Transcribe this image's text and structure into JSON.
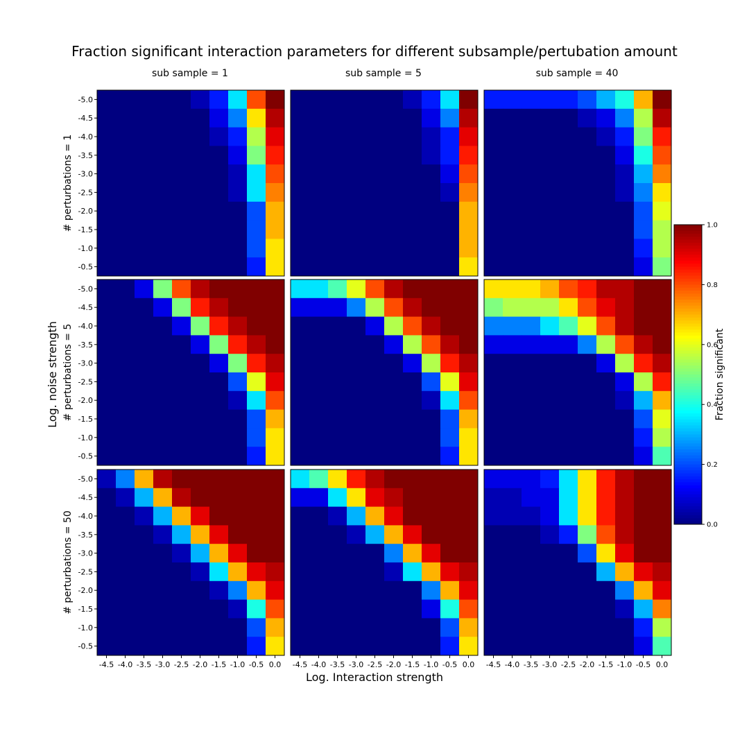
{
  "chart_data": {
    "type": "heatmap",
    "title": "Fraction significant interaction parameters for different subsample/pertubation amount",
    "xlabel": "Log. Interaction strength",
    "ylabel": "Log. noise strength",
    "x_ticks": [
      "-4.5",
      "-4.0",
      "-3.5",
      "-3.0",
      "-2.5",
      "-2.0",
      "-1.5",
      "-1.0",
      "-0.5",
      "0.0"
    ],
    "y_ticks": [
      "-5.0",
      "-4.5",
      "-4.0",
      "-3.5",
      "-3.0",
      "-2.5",
      "-2.0",
      "-1.5",
      "-1.0",
      "-0.5"
    ],
    "column_titles": [
      "sub sample = 1",
      "sub sample = 5",
      "sub sample = 40"
    ],
    "row_labels": [
      "# perturbations = 1",
      "# perturbations = 5",
      "# perturbations = 50"
    ],
    "colorbar": {
      "label": "Fraction significant",
      "range": [
        0,
        1
      ],
      "ticks": [
        "0.0",
        "0.2",
        "0.4",
        "0.6",
        "0.8",
        "1.0"
      ],
      "colormap": "jet"
    },
    "panels": [
      [
        [
          [
            0,
            0,
            0,
            0,
            0,
            0.05,
            0.15,
            0.35,
            0.8,
            1.0
          ],
          [
            0,
            0,
            0,
            0,
            0,
            0,
            0.1,
            0.25,
            0.65,
            0.95
          ],
          [
            0,
            0,
            0,
            0,
            0,
            0,
            0.05,
            0.15,
            0.55,
            0.9
          ],
          [
            0,
            0,
            0,
            0,
            0,
            0,
            0,
            0.1,
            0.5,
            0.85
          ],
          [
            0,
            0,
            0,
            0,
            0,
            0,
            0,
            0.05,
            0.35,
            0.8
          ],
          [
            0,
            0,
            0,
            0,
            0,
            0,
            0,
            0.05,
            0.35,
            0.75
          ],
          [
            0,
            0,
            0,
            0,
            0,
            0,
            0,
            0,
            0.2,
            0.7
          ],
          [
            0,
            0,
            0,
            0,
            0,
            0,
            0,
            0,
            0.2,
            0.7
          ],
          [
            0,
            0,
            0,
            0,
            0,
            0,
            0,
            0,
            0.2,
            0.65
          ],
          [
            0,
            0,
            0,
            0,
            0,
            0,
            0,
            0,
            0.15,
            0.65
          ]
        ],
        [
          [
            0,
            0,
            0,
            0,
            0,
            0,
            0.05,
            0.15,
            0.35,
            1.0
          ],
          [
            0,
            0,
            0,
            0,
            0,
            0,
            0,
            0.1,
            0.25,
            0.95
          ],
          [
            0,
            0,
            0,
            0,
            0,
            0,
            0,
            0.05,
            0.15,
            0.9
          ],
          [
            0,
            0,
            0,
            0,
            0,
            0,
            0,
            0.05,
            0.15,
            0.85
          ],
          [
            0,
            0,
            0,
            0,
            0,
            0,
            0,
            0,
            0.1,
            0.8
          ],
          [
            0,
            0,
            0,
            0,
            0,
            0,
            0,
            0,
            0.05,
            0.75
          ],
          [
            0,
            0,
            0,
            0,
            0,
            0,
            0,
            0,
            0,
            0.7
          ],
          [
            0,
            0,
            0,
            0,
            0,
            0,
            0,
            0,
            0,
            0.7
          ],
          [
            0,
            0,
            0,
            0,
            0,
            0,
            0,
            0,
            0,
            0.7
          ],
          [
            0,
            0,
            0,
            0,
            0,
            0,
            0,
            0,
            0,
            0.65
          ]
        ],
        [
          [
            0.15,
            0.15,
            0.15,
            0.15,
            0.15,
            0.2,
            0.3,
            0.4,
            0.7,
            1.0
          ],
          [
            0,
            0,
            0,
            0,
            0,
            0.05,
            0.1,
            0.25,
            0.55,
            0.95
          ],
          [
            0,
            0,
            0,
            0,
            0,
            0,
            0.05,
            0.15,
            0.5,
            0.85
          ],
          [
            0,
            0,
            0,
            0,
            0,
            0,
            0,
            0.1,
            0.4,
            0.8
          ],
          [
            0,
            0,
            0,
            0,
            0,
            0,
            0,
            0.05,
            0.3,
            0.75
          ],
          [
            0,
            0,
            0,
            0,
            0,
            0,
            0,
            0.05,
            0.25,
            0.65
          ],
          [
            0,
            0,
            0,
            0,
            0,
            0,
            0,
            0,
            0.2,
            0.6
          ],
          [
            0,
            0,
            0,
            0,
            0,
            0,
            0,
            0,
            0.2,
            0.55
          ],
          [
            0,
            0,
            0,
            0,
            0,
            0,
            0,
            0,
            0.15,
            0.55
          ],
          [
            0,
            0,
            0,
            0,
            0,
            0,
            0,
            0,
            0.1,
            0.5
          ]
        ]
      ],
      [
        [
          [
            0,
            0,
            0.1,
            0.5,
            0.8,
            0.95,
            1.0,
            1.0,
            1.0,
            1.0
          ],
          [
            0,
            0,
            0,
            0.1,
            0.5,
            0.85,
            0.95,
            1.0,
            1.0,
            1.0
          ],
          [
            0,
            0,
            0,
            0,
            0.1,
            0.5,
            0.85,
            0.95,
            1.0,
            1.0
          ],
          [
            0,
            0,
            0,
            0,
            0,
            0.1,
            0.5,
            0.85,
            0.95,
            1.0
          ],
          [
            0,
            0,
            0,
            0,
            0,
            0,
            0.1,
            0.5,
            0.85,
            0.95
          ],
          [
            0,
            0,
            0,
            0,
            0,
            0,
            0,
            0.2,
            0.6,
            0.9
          ],
          [
            0,
            0,
            0,
            0,
            0,
            0,
            0,
            0.05,
            0.35,
            0.8
          ],
          [
            0,
            0,
            0,
            0,
            0,
            0,
            0,
            0,
            0.2,
            0.7
          ],
          [
            0,
            0,
            0,
            0,
            0,
            0,
            0,
            0,
            0.2,
            0.65
          ],
          [
            0,
            0,
            0,
            0,
            0,
            0,
            0,
            0,
            0.15,
            0.65
          ]
        ],
        [
          [
            0.35,
            0.35,
            0.45,
            0.6,
            0.8,
            0.95,
            1.0,
            1.0,
            1.0,
            1.0
          ],
          [
            0.1,
            0.1,
            0.1,
            0.25,
            0.55,
            0.8,
            0.95,
            1.0,
            1.0,
            1.0
          ],
          [
            0,
            0,
            0,
            0,
            0.1,
            0.55,
            0.8,
            0.95,
            1.0,
            1.0
          ],
          [
            0,
            0,
            0,
            0,
            0,
            0.1,
            0.55,
            0.8,
            0.95,
            1.0
          ],
          [
            0,
            0,
            0,
            0,
            0,
            0,
            0.1,
            0.55,
            0.85,
            0.95
          ],
          [
            0,
            0,
            0,
            0,
            0,
            0,
            0,
            0.2,
            0.6,
            0.9
          ],
          [
            0,
            0,
            0,
            0,
            0,
            0,
            0,
            0.05,
            0.35,
            0.8
          ],
          [
            0,
            0,
            0,
            0,
            0,
            0,
            0,
            0,
            0.2,
            0.7
          ],
          [
            0,
            0,
            0,
            0,
            0,
            0,
            0,
            0,
            0.2,
            0.65
          ],
          [
            0,
            0,
            0,
            0,
            0,
            0,
            0,
            0,
            0.15,
            0.65
          ]
        ],
        [
          [
            0.65,
            0.65,
            0.65,
            0.7,
            0.8,
            0.85,
            0.95,
            0.95,
            1.0,
            1.0
          ],
          [
            0.5,
            0.55,
            0.55,
            0.55,
            0.65,
            0.8,
            0.9,
            0.95,
            1.0,
            1.0
          ],
          [
            0.25,
            0.25,
            0.25,
            0.35,
            0.45,
            0.6,
            0.8,
            0.95,
            1.0,
            1.0
          ],
          [
            0.1,
            0.1,
            0.1,
            0.1,
            0.1,
            0.25,
            0.55,
            0.8,
            0.95,
            1.0
          ],
          [
            0,
            0,
            0,
            0,
            0,
            0,
            0.1,
            0.55,
            0.85,
            0.95
          ],
          [
            0,
            0,
            0,
            0,
            0,
            0,
            0,
            0.1,
            0.55,
            0.85
          ],
          [
            0,
            0,
            0,
            0,
            0,
            0,
            0,
            0.05,
            0.3,
            0.7
          ],
          [
            0,
            0,
            0,
            0,
            0,
            0,
            0,
            0,
            0.2,
            0.6
          ],
          [
            0,
            0,
            0,
            0,
            0,
            0,
            0,
            0,
            0.15,
            0.55
          ],
          [
            0,
            0,
            0,
            0,
            0,
            0,
            0,
            0,
            0.1,
            0.45
          ]
        ]
      ],
      [
        [
          [
            0.05,
            0.25,
            0.7,
            0.95,
            1.0,
            1.0,
            1.0,
            1.0,
            1.0,
            1.0
          ],
          [
            0,
            0.05,
            0.3,
            0.7,
            0.95,
            1.0,
            1.0,
            1.0,
            1.0,
            1.0
          ],
          [
            0,
            0,
            0.05,
            0.3,
            0.7,
            0.9,
            1.0,
            1.0,
            1.0,
            1.0
          ],
          [
            0,
            0,
            0,
            0.05,
            0.3,
            0.7,
            0.9,
            1.0,
            1.0,
            1.0
          ],
          [
            0,
            0,
            0,
            0,
            0.05,
            0.3,
            0.7,
            0.9,
            1.0,
            1.0
          ],
          [
            0,
            0,
            0,
            0,
            0,
            0.05,
            0.35,
            0.7,
            0.9,
            0.95
          ],
          [
            0,
            0,
            0,
            0,
            0,
            0,
            0.05,
            0.25,
            0.7,
            0.9
          ],
          [
            0,
            0,
            0,
            0,
            0,
            0,
            0,
            0.05,
            0.4,
            0.8
          ],
          [
            0,
            0,
            0,
            0,
            0,
            0,
            0,
            0,
            0.2,
            0.7
          ],
          [
            0,
            0,
            0,
            0,
            0,
            0,
            0,
            0,
            0.15,
            0.65
          ]
        ],
        [
          [
            0.35,
            0.45,
            0.65,
            0.85,
            0.95,
            1.0,
            1.0,
            1.0,
            1.0,
            1.0
          ],
          [
            0.1,
            0.1,
            0.35,
            0.65,
            0.9,
            0.95,
            1.0,
            1.0,
            1.0,
            1.0
          ],
          [
            0,
            0,
            0.05,
            0.3,
            0.7,
            0.9,
            1.0,
            1.0,
            1.0,
            1.0
          ],
          [
            0,
            0,
            0,
            0.05,
            0.3,
            0.7,
            0.9,
            1.0,
            1.0,
            1.0
          ],
          [
            0,
            0,
            0,
            0,
            0,
            0.25,
            0.7,
            0.9,
            1.0,
            1.0
          ],
          [
            0,
            0,
            0,
            0,
            0,
            0.05,
            0.35,
            0.7,
            0.9,
            0.95
          ],
          [
            0,
            0,
            0,
            0,
            0,
            0,
            0,
            0.25,
            0.7,
            0.9
          ],
          [
            0,
            0,
            0,
            0,
            0,
            0,
            0,
            0.1,
            0.4,
            0.8
          ],
          [
            0,
            0,
            0,
            0,
            0,
            0,
            0,
            0,
            0.2,
            0.7
          ],
          [
            0,
            0,
            0,
            0,
            0,
            0,
            0,
            0,
            0.15,
            0.65
          ]
        ],
        [
          [
            0.1,
            0.1,
            0.1,
            0.15,
            0.35,
            0.65,
            0.85,
            0.95,
            1.0,
            1.0
          ],
          [
            0.05,
            0.05,
            0.1,
            0.1,
            0.35,
            0.65,
            0.85,
            0.95,
            1.0,
            1.0
          ],
          [
            0.05,
            0.05,
            0.05,
            0.1,
            0.35,
            0.65,
            0.85,
            0.95,
            1.0,
            1.0
          ],
          [
            0,
            0,
            0,
            0.05,
            0.15,
            0.5,
            0.8,
            0.95,
            1.0,
            1.0
          ],
          [
            0,
            0,
            0,
            0,
            0,
            0.2,
            0.65,
            0.9,
            1.0,
            1.0
          ],
          [
            0,
            0,
            0,
            0,
            0,
            0,
            0.3,
            0.7,
            0.9,
            0.95
          ],
          [
            0,
            0,
            0,
            0,
            0,
            0,
            0,
            0.25,
            0.7,
            0.9
          ],
          [
            0,
            0,
            0,
            0,
            0,
            0,
            0,
            0.05,
            0.3,
            0.75
          ],
          [
            0,
            0,
            0,
            0,
            0,
            0,
            0,
            0,
            0.15,
            0.55
          ],
          [
            0,
            0,
            0,
            0,
            0,
            0,
            0,
            0,
            0.1,
            0.45
          ]
        ]
      ]
    ]
  }
}
